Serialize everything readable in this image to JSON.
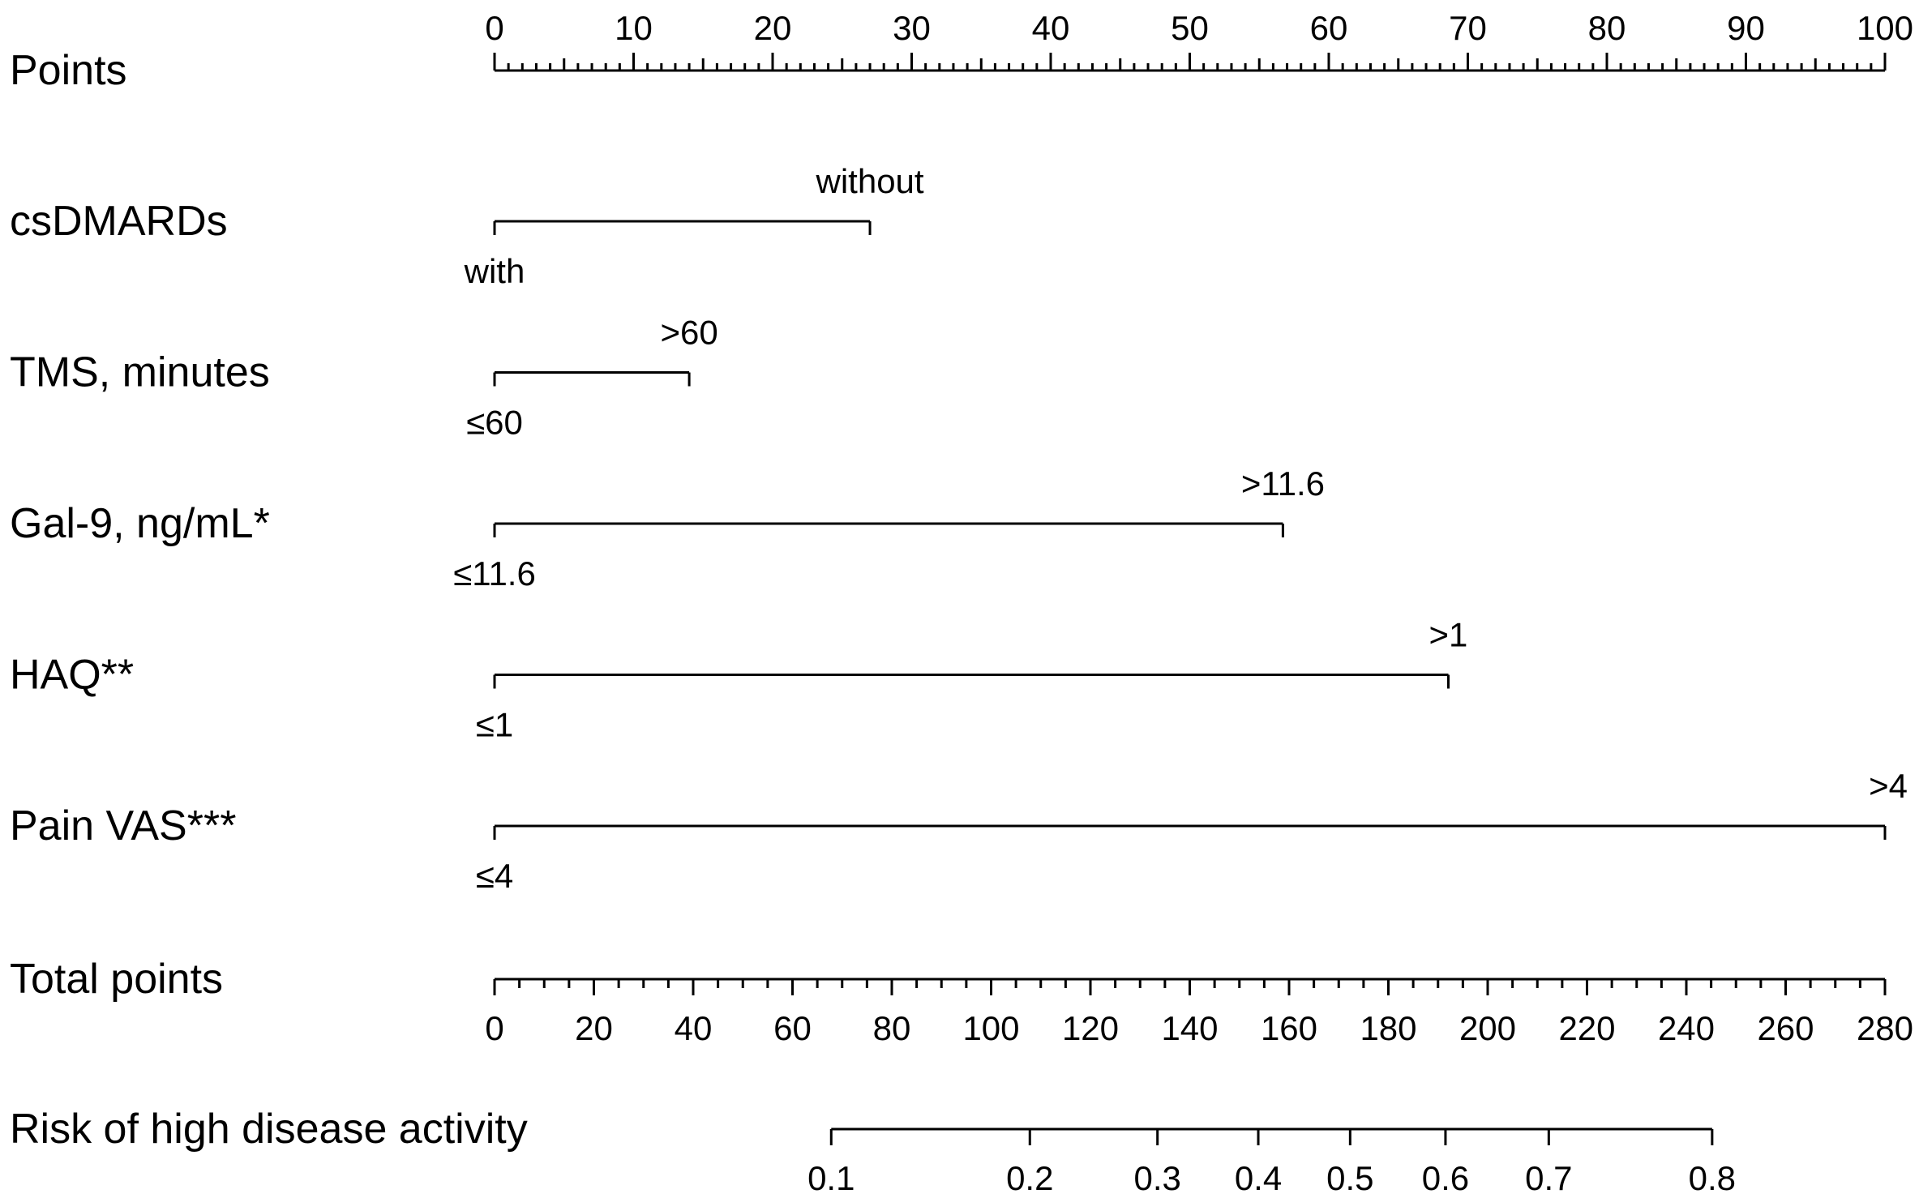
{
  "chart_data": {
    "type": "nomogram",
    "points_axis": {
      "label": "Points",
      "range": [
        0,
        100
      ],
      "major_ticks": [
        0,
        10,
        20,
        30,
        40,
        50,
        60,
        70,
        80,
        90,
        100
      ],
      "minor_step": 1
    },
    "predictors": [
      {
        "label": "csDMARDs",
        "levels": [
          {
            "label": "with",
            "points": 0
          },
          {
            "label": "without",
            "points": 27
          }
        ]
      },
      {
        "label": "TMS, minutes",
        "levels": [
          {
            "label": "≤60",
            "points": 0
          },
          {
            "label": ">60",
            "points": 14
          }
        ]
      },
      {
        "label": "Gal-9, ng/mL*",
        "levels": [
          {
            "label": "≤11.6",
            "points": 0
          },
          {
            "label": ">11.6",
            "points": 56.7
          }
        ]
      },
      {
        "label": "HAQ**",
        "levels": [
          {
            "label": "≤1",
            "points": 0
          },
          {
            "label": ">1",
            "points": 68.6
          }
        ]
      },
      {
        "label": "Pain VAS***",
        "levels": [
          {
            "label": "≤4",
            "points": 0
          },
          {
            "label": ">4",
            "points": 100
          }
        ]
      }
    ],
    "total_points_axis": {
      "label": "Total points",
      "range": [
        0,
        280
      ],
      "major_ticks": [
        0,
        20,
        40,
        60,
        80,
        100,
        120,
        140,
        160,
        180,
        200,
        220,
        240,
        260,
        280
      ],
      "minor_step": 5
    },
    "risk_axis": {
      "label": "Risk of high disease activity",
      "ticks": [
        {
          "label": "0.1",
          "total_points": 67.8
        },
        {
          "label": "0.2",
          "total_points": 107.8
        },
        {
          "label": "0.3",
          "total_points": 133.5
        },
        {
          "label": "0.4",
          "total_points": 153.8
        },
        {
          "label": "0.5",
          "total_points": 172.3
        },
        {
          "label": "0.6",
          "total_points": 191.5
        },
        {
          "label": "0.7",
          "total_points": 212.3
        },
        {
          "label": "0.8",
          "total_points": 245.2
        }
      ]
    }
  }
}
